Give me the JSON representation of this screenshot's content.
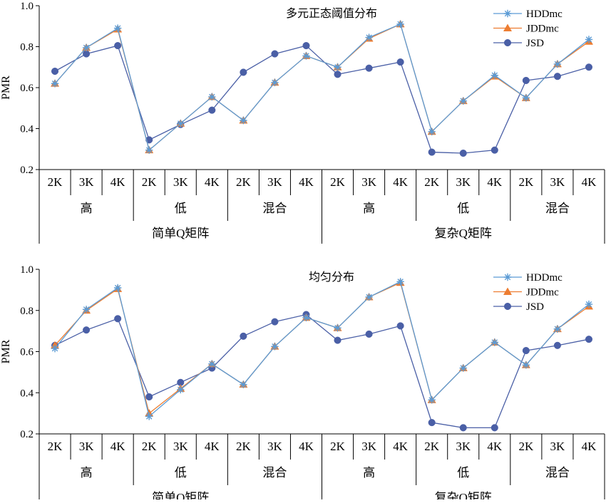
{
  "chart_data": [
    {
      "type": "line",
      "title": "多元正态阈值分布",
      "ylabel": "PMR",
      "xlabel": "",
      "ylim": [
        0.2,
        1.0
      ],
      "yticks": [
        "0.2",
        "0.4",
        "0.6",
        "0.8",
        "1.0"
      ],
      "yticks_values": [
        0.2,
        0.4,
        0.6,
        0.8,
        1.0
      ],
      "grid": false,
      "legend_position": "top-right",
      "categories_level1": [
        "2K",
        "3K",
        "4K",
        "2K",
        "3K",
        "4K",
        "2K",
        "3K",
        "4K",
        "2K",
        "3K",
        "4K",
        "2K",
        "3K",
        "4K",
        "2K",
        "3K",
        "4K"
      ],
      "categories_level2": [
        "高",
        "低",
        "混合",
        "高",
        "低",
        "混合"
      ],
      "categories_level3": [
        "简单Q矩阵",
        "复杂Q矩阵"
      ],
      "series": [
        {
          "name": "HDDmc",
          "color": "#5b9bd5",
          "marker": "star",
          "values": [
            0.62,
            0.795,
            0.89,
            0.295,
            0.425,
            0.555,
            0.44,
            0.625,
            0.755,
            0.7,
            0.845,
            0.91,
            0.385,
            0.535,
            0.66,
            0.55,
            0.715,
            0.835
          ]
        },
        {
          "name": "JDDmc",
          "color": "#ed7d31",
          "marker": "triangle",
          "values": [
            0.62,
            0.795,
            0.885,
            0.295,
            0.425,
            0.555,
            0.44,
            0.625,
            0.755,
            0.7,
            0.84,
            0.91,
            0.385,
            0.535,
            0.655,
            0.55,
            0.715,
            0.825
          ]
        },
        {
          "name": "JSD",
          "color": "#4a5fa6",
          "marker": "circle",
          "values": [
            0.68,
            0.765,
            0.805,
            0.345,
            0.42,
            0.49,
            0.675,
            0.765,
            0.805,
            0.665,
            0.695,
            0.725,
            0.285,
            0.28,
            0.295,
            0.635,
            0.655,
            0.7
          ]
        }
      ]
    },
    {
      "type": "line",
      "title": "均匀分布",
      "ylabel": "PMR",
      "xlabel": "",
      "ylim": [
        0.2,
        1.0
      ],
      "yticks": [
        "0.2",
        "0.4",
        "0.6",
        "0.8",
        "1.0"
      ],
      "yticks_values": [
        0.2,
        0.4,
        0.6,
        0.8,
        1.0
      ],
      "grid": false,
      "legend_position": "top-right",
      "categories_level1": [
        "2K",
        "3K",
        "4K",
        "2K",
        "3K",
        "4K",
        "2K",
        "3K",
        "4K",
        "2K",
        "3K",
        "4K",
        "2K",
        "3K",
        "4K",
        "2K",
        "3K",
        "4K"
      ],
      "categories_level2": [
        "高",
        "低",
        "混合",
        "高",
        "低",
        "混合"
      ],
      "categories_level3": [
        "简单Q矩阵",
        "复杂Q矩阵"
      ],
      "series": [
        {
          "name": "HDDmc",
          "color": "#5b9bd5",
          "marker": "star",
          "values": [
            0.615,
            0.805,
            0.91,
            0.285,
            0.415,
            0.54,
            0.44,
            0.625,
            0.765,
            0.715,
            0.865,
            0.94,
            0.365,
            0.52,
            0.645,
            0.535,
            0.71,
            0.83
          ]
        },
        {
          "name": "JDDmc",
          "color": "#ed7d31",
          "marker": "triangle",
          "values": [
            0.63,
            0.8,
            0.905,
            0.3,
            0.42,
            0.54,
            0.44,
            0.625,
            0.765,
            0.715,
            0.865,
            0.935,
            0.365,
            0.52,
            0.645,
            0.535,
            0.71,
            0.82
          ]
        },
        {
          "name": "JSD",
          "color": "#4a5fa6",
          "marker": "circle",
          "values": [
            0.63,
            0.705,
            0.76,
            0.38,
            0.45,
            0.52,
            0.675,
            0.745,
            0.78,
            0.655,
            0.685,
            0.725,
            0.255,
            0.23,
            0.23,
            0.605,
            0.63,
            0.66
          ]
        }
      ]
    }
  ]
}
